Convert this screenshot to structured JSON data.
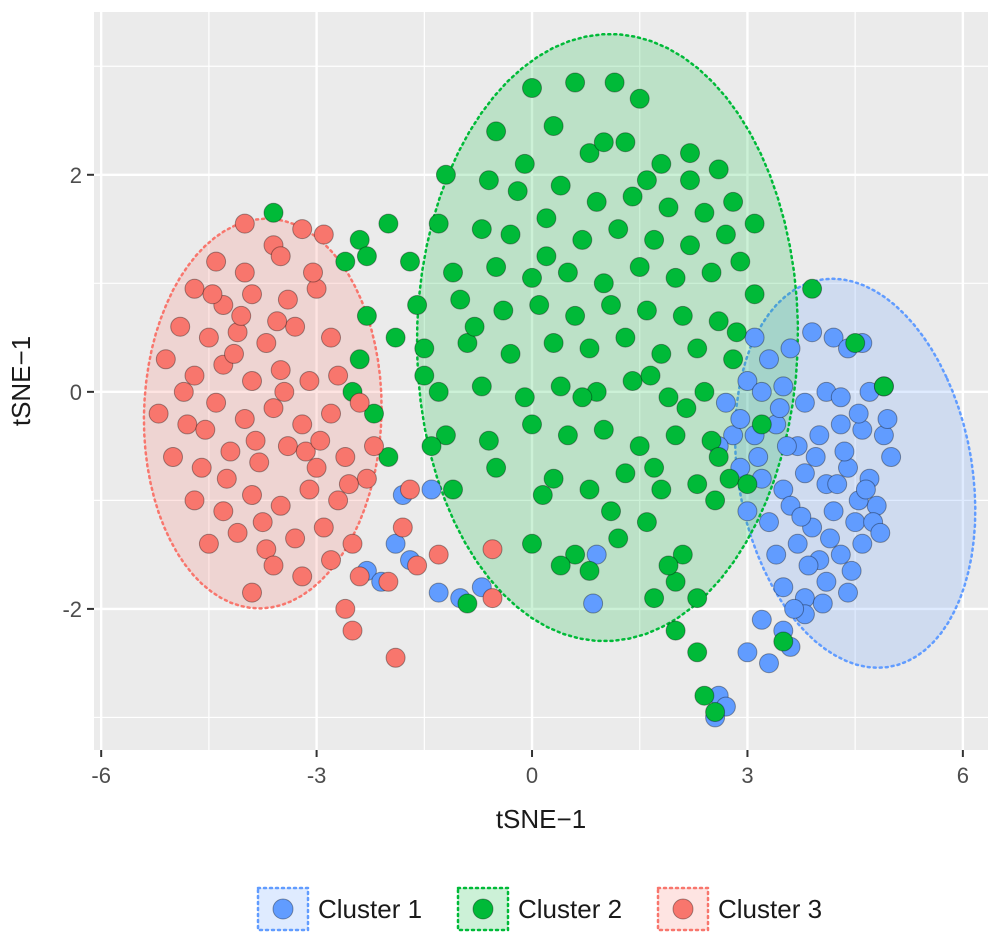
{
  "chart_data": {
    "type": "scatter",
    "title": "",
    "xlabel": "tSNE−1",
    "ylabel": "tSNE−1",
    "xlim": [
      -6.1,
      6.35
    ],
    "ylim": [
      -3.3,
      3.5
    ],
    "x_ticks": [
      -6,
      -3,
      0,
      3,
      6
    ],
    "x_tick_labels": [
      "-6",
      "-3",
      "0",
      "3",
      "6"
    ],
    "y_ticks": [
      -2,
      0,
      2
    ],
    "y_tick_labels": [
      "-2",
      "0",
      "2"
    ],
    "grid": true,
    "panel_background": "#ebebeb",
    "legend_position": "bottom",
    "ellipse_style": "dotted, semi-transparent fill",
    "series": [
      {
        "name": "Cluster 1",
        "color": "#619cff",
        "ellipse": {
          "cx": 4.5,
          "cy": -0.75,
          "rx": 1.55,
          "ry": 1.9,
          "angle": 35
        },
        "points": [
          [
            3.1,
            0.5
          ],
          [
            3.3,
            0.3
          ],
          [
            3.6,
            0.4
          ],
          [
            3.9,
            0.55
          ],
          [
            4.2,
            0.5
          ],
          [
            4.4,
            0.4
          ],
          [
            4.6,
            0.45
          ],
          [
            3.0,
            0.1
          ],
          [
            3.2,
            0.0
          ],
          [
            3.5,
            0.05
          ],
          [
            3.8,
            -0.1
          ],
          [
            4.1,
            0.0
          ],
          [
            4.3,
            -0.05
          ],
          [
            4.7,
            0.0
          ],
          [
            4.9,
            0.05
          ],
          [
            3.1,
            -0.4
          ],
          [
            3.4,
            -0.3
          ],
          [
            3.7,
            -0.5
          ],
          [
            4.0,
            -0.4
          ],
          [
            4.3,
            -0.3
          ],
          [
            4.6,
            -0.35
          ],
          [
            4.9,
            -0.4
          ],
          [
            2.9,
            -0.7
          ],
          [
            3.2,
            -0.8
          ],
          [
            3.5,
            -0.9
          ],
          [
            3.8,
            -0.75
          ],
          [
            4.1,
            -0.85
          ],
          [
            4.4,
            -0.7
          ],
          [
            4.7,
            -0.8
          ],
          [
            5.0,
            -0.6
          ],
          [
            3.0,
            -1.1
          ],
          [
            3.3,
            -1.2
          ],
          [
            3.6,
            -1.05
          ],
          [
            3.9,
            -1.25
          ],
          [
            4.2,
            -1.1
          ],
          [
            4.5,
            -1.2
          ],
          [
            4.8,
            -1.05
          ],
          [
            3.4,
            -1.5
          ],
          [
            3.7,
            -1.4
          ],
          [
            4.0,
            -1.55
          ],
          [
            4.3,
            -1.5
          ],
          [
            4.6,
            -1.4
          ],
          [
            3.5,
            -1.8
          ],
          [
            3.8,
            -1.9
          ],
          [
            4.1,
            -1.75
          ],
          [
            4.4,
            -1.85
          ],
          [
            3.2,
            -2.1
          ],
          [
            3.5,
            -2.2
          ],
          [
            3.8,
            -2.05
          ],
          [
            3.0,
            -2.4
          ],
          [
            3.3,
            -2.5
          ],
          [
            3.6,
            -2.35
          ],
          [
            4.55,
            -1.0
          ],
          [
            4.75,
            -1.2
          ],
          [
            4.35,
            -0.55
          ],
          [
            4.15,
            -1.35
          ],
          [
            3.95,
            -0.6
          ],
          [
            2.8,
            -0.4
          ],
          [
            2.9,
            -0.25
          ],
          [
            2.6,
            -0.5
          ],
          [
            3.15,
            -0.6
          ],
          [
            2.7,
            -0.1
          ],
          [
            3.45,
            -0.15
          ],
          [
            4.85,
            -1.3
          ],
          [
            4.65,
            -0.9
          ],
          [
            4.45,
            -1.65
          ],
          [
            4.25,
            -0.85
          ],
          [
            3.75,
            -1.15
          ],
          [
            3.55,
            -0.5
          ],
          [
            4.05,
            -1.95
          ],
          [
            3.85,
            -1.6
          ],
          [
            3.65,
            -2.0
          ],
          [
            4.55,
            -0.2
          ],
          [
            4.95,
            -0.25
          ],
          [
            2.6,
            -2.8
          ],
          [
            2.7,
            -2.9
          ],
          [
            2.55,
            -3.0
          ],
          [
            -2.3,
            -1.65
          ],
          [
            -1.9,
            -1.4
          ],
          [
            -1.7,
            -1.55
          ],
          [
            -1.3,
            -1.85
          ],
          [
            -1.0,
            -1.9
          ],
          [
            -0.7,
            -1.8
          ],
          [
            -1.8,
            -0.95
          ],
          [
            -1.4,
            -0.9
          ],
          [
            0.9,
            -1.5
          ],
          [
            0.85,
            -1.95
          ],
          [
            -2.1,
            -1.75
          ]
        ]
      },
      {
        "name": "Cluster 2",
        "color": "#00ba38",
        "ellipse": {
          "cx": 1.05,
          "cy": 0.5,
          "rx": 2.65,
          "ry": 2.8,
          "angle": -8
        },
        "points": [
          [
            0.0,
            2.8
          ],
          [
            0.6,
            2.85
          ],
          [
            1.15,
            2.85
          ],
          [
            1.5,
            2.7
          ],
          [
            -0.5,
            2.4
          ],
          [
            0.3,
            2.45
          ],
          [
            0.8,
            2.2
          ],
          [
            1.3,
            2.3
          ],
          [
            1.8,
            2.1
          ],
          [
            2.2,
            1.95
          ],
          [
            2.6,
            2.05
          ],
          [
            -1.2,
            2.0
          ],
          [
            -0.6,
            1.95
          ],
          [
            -0.2,
            1.85
          ],
          [
            0.4,
            1.9
          ],
          [
            0.9,
            1.75
          ],
          [
            1.4,
            1.8
          ],
          [
            1.9,
            1.7
          ],
          [
            2.4,
            1.65
          ],
          [
            2.8,
            1.75
          ],
          [
            -1.3,
            1.55
          ],
          [
            -0.7,
            1.5
          ],
          [
            -0.3,
            1.45
          ],
          [
            0.2,
            1.6
          ],
          [
            0.7,
            1.4
          ],
          [
            1.2,
            1.5
          ],
          [
            1.7,
            1.4
          ],
          [
            2.2,
            1.35
          ],
          [
            2.7,
            1.45
          ],
          [
            3.1,
            1.55
          ],
          [
            -1.7,
            1.2
          ],
          [
            -1.1,
            1.1
          ],
          [
            -0.5,
            1.15
          ],
          [
            0.0,
            1.05
          ],
          [
            0.5,
            1.1
          ],
          [
            1.0,
            1.0
          ],
          [
            1.5,
            1.15
          ],
          [
            2.0,
            1.05
          ],
          [
            2.5,
            1.1
          ],
          [
            2.9,
            1.2
          ],
          [
            -1.6,
            0.8
          ],
          [
            -1.0,
            0.85
          ],
          [
            -0.4,
            0.75
          ],
          [
            0.1,
            0.8
          ],
          [
            0.6,
            0.7
          ],
          [
            1.1,
            0.8
          ],
          [
            1.6,
            0.75
          ],
          [
            2.1,
            0.7
          ],
          [
            2.6,
            0.65
          ],
          [
            3.1,
            0.9
          ],
          [
            -1.5,
            0.4
          ],
          [
            -0.9,
            0.45
          ],
          [
            -0.3,
            0.35
          ],
          [
            0.3,
            0.45
          ],
          [
            0.8,
            0.4
          ],
          [
            1.3,
            0.5
          ],
          [
            1.8,
            0.35
          ],
          [
            2.3,
            0.4
          ],
          [
            2.8,
            0.3
          ],
          [
            -1.3,
            0.0
          ],
          [
            -0.7,
            0.05
          ],
          [
            -0.1,
            -0.05
          ],
          [
            0.4,
            0.05
          ],
          [
            0.9,
            0.0
          ],
          [
            1.4,
            0.1
          ],
          [
            1.9,
            -0.05
          ],
          [
            2.4,
            0.0
          ],
          [
            -1.2,
            -0.4
          ],
          [
            -0.6,
            -0.45
          ],
          [
            0.0,
            -0.3
          ],
          [
            0.5,
            -0.4
          ],
          [
            1.0,
            -0.35
          ],
          [
            1.5,
            -0.5
          ],
          [
            2.0,
            -0.4
          ],
          [
            2.5,
            -0.45
          ],
          [
            -1.1,
            -0.9
          ],
          [
            -0.5,
            -0.7
          ],
          [
            0.3,
            -0.8
          ],
          [
            0.8,
            -0.9
          ],
          [
            1.3,
            -0.75
          ],
          [
            1.8,
            -0.9
          ],
          [
            2.3,
            -0.85
          ],
          [
            0.0,
            -1.4
          ],
          [
            0.6,
            -1.5
          ],
          [
            1.2,
            -1.35
          ],
          [
            1.6,
            -1.2
          ],
          [
            2.1,
            -1.5
          ],
          [
            -2.5,
            0.0
          ],
          [
            -2.2,
            -0.2
          ],
          [
            -2.0,
            -0.6
          ],
          [
            -1.9,
            0.5
          ],
          [
            -2.3,
            0.7
          ],
          [
            -2.6,
            1.2
          ],
          [
            -2.4,
            1.4
          ],
          [
            -2.0,
            1.55
          ],
          [
            -2.3,
            1.25
          ],
          [
            -3.6,
            1.65
          ],
          [
            1.7,
            -1.9
          ],
          [
            2.0,
            -2.2
          ],
          [
            2.3,
            -2.4
          ],
          [
            2.4,
            -2.8
          ],
          [
            2.55,
            -2.95
          ],
          [
            -0.9,
            -1.95
          ],
          [
            0.4,
            -1.6
          ],
          [
            0.8,
            -1.65
          ],
          [
            2.0,
            -1.75
          ],
          [
            2.3,
            -1.9
          ],
          [
            1.9,
            -1.6
          ],
          [
            2.6,
            -0.6
          ],
          [
            2.75,
            -0.8
          ],
          [
            2.55,
            -1.0
          ],
          [
            3.5,
            -2.3
          ],
          [
            4.5,
            0.45
          ],
          [
            4.9,
            0.05
          ],
          [
            3.9,
            0.95
          ],
          [
            2.85,
            0.55
          ],
          [
            3.2,
            -0.3
          ],
          [
            3.0,
            -0.85
          ],
          [
            2.2,
            2.2
          ],
          [
            1.0,
            2.3
          ],
          [
            -0.1,
            2.1
          ],
          [
            1.6,
            1.95
          ],
          [
            0.2,
            1.25
          ],
          [
            -0.8,
            0.6
          ],
          [
            0.7,
            -0.05
          ],
          [
            1.65,
            0.15
          ],
          [
            2.15,
            -0.15
          ],
          [
            -1.4,
            -0.5
          ],
          [
            0.15,
            -0.95
          ],
          [
            1.1,
            -1.1
          ],
          [
            1.7,
            -0.7
          ],
          [
            -1.5,
            0.15
          ],
          [
            -2.4,
            0.3
          ]
        ]
      },
      {
        "name": "Cluster 3",
        "color": "#f8766d",
        "ellipse": {
          "cx": -3.75,
          "cy": -0.2,
          "rx": 1.65,
          "ry": 1.8,
          "angle": -10
        },
        "points": [
          [
            -4.0,
            1.55
          ],
          [
            -3.6,
            1.35
          ],
          [
            -3.2,
            1.5
          ],
          [
            -2.9,
            1.45
          ],
          [
            -4.4,
            1.2
          ],
          [
            -4.0,
            1.1
          ],
          [
            -3.5,
            1.25
          ],
          [
            -4.7,
            0.95
          ],
          [
            -4.3,
            0.8
          ],
          [
            -3.9,
            0.9
          ],
          [
            -3.4,
            0.85
          ],
          [
            -3.0,
            0.95
          ],
          [
            -4.9,
            0.6
          ],
          [
            -4.5,
            0.5
          ],
          [
            -4.1,
            0.55
          ],
          [
            -3.7,
            0.45
          ],
          [
            -3.3,
            0.6
          ],
          [
            -2.8,
            0.5
          ],
          [
            -5.1,
            0.3
          ],
          [
            -4.7,
            0.15
          ],
          [
            -4.3,
            0.25
          ],
          [
            -3.9,
            0.1
          ],
          [
            -3.5,
            0.2
          ],
          [
            -3.1,
            0.1
          ],
          [
            -2.7,
            0.15
          ],
          [
            -5.2,
            -0.2
          ],
          [
            -4.8,
            -0.3
          ],
          [
            -4.4,
            -0.1
          ],
          [
            -4.0,
            -0.25
          ],
          [
            -3.6,
            -0.15
          ],
          [
            -3.2,
            -0.3
          ],
          [
            -2.8,
            -0.2
          ],
          [
            -2.4,
            -0.1
          ],
          [
            -5.0,
            -0.6
          ],
          [
            -4.6,
            -0.7
          ],
          [
            -4.2,
            -0.55
          ],
          [
            -3.8,
            -0.65
          ],
          [
            -3.4,
            -0.5
          ],
          [
            -3.0,
            -0.7
          ],
          [
            -2.6,
            -0.6
          ],
          [
            -2.2,
            -0.5
          ],
          [
            -4.7,
            -1.0
          ],
          [
            -4.3,
            -1.1
          ],
          [
            -3.9,
            -0.95
          ],
          [
            -3.5,
            -1.05
          ],
          [
            -3.1,
            -0.9
          ],
          [
            -2.7,
            -1.0
          ],
          [
            -2.3,
            -0.8
          ],
          [
            -4.5,
            -1.4
          ],
          [
            -4.1,
            -1.3
          ],
          [
            -3.7,
            -1.45
          ],
          [
            -3.3,
            -1.35
          ],
          [
            -2.9,
            -1.25
          ],
          [
            -2.5,
            -1.4
          ],
          [
            -3.6,
            -1.6
          ],
          [
            -3.2,
            -1.7
          ],
          [
            -2.8,
            -1.55
          ],
          [
            -2.4,
            -1.7
          ],
          [
            -3.9,
            -1.85
          ],
          [
            -2.0,
            -1.75
          ],
          [
            -2.6,
            -2.0
          ],
          [
            -2.5,
            -2.2
          ],
          [
            -1.9,
            -2.45
          ],
          [
            -0.55,
            -1.9
          ],
          [
            -0.55,
            -1.45
          ],
          [
            -1.3,
            -1.5
          ],
          [
            -1.6,
            -1.6
          ],
          [
            -1.7,
            -0.9
          ],
          [
            -1.8,
            -1.25
          ],
          [
            -4.15,
            0.35
          ],
          [
            -3.85,
            -0.45
          ],
          [
            -4.55,
            -0.35
          ],
          [
            -3.45,
            0.0
          ],
          [
            -3.15,
            -0.55
          ],
          [
            -4.25,
            -0.8
          ],
          [
            -3.75,
            -1.2
          ],
          [
            -4.05,
            0.7
          ],
          [
            -3.55,
            0.65
          ],
          [
            -2.95,
            -0.45
          ],
          [
            -4.85,
            0.0
          ],
          [
            -4.45,
            0.9
          ],
          [
            -2.55,
            -0.85
          ],
          [
            -3.05,
            1.1
          ]
        ]
      }
    ]
  },
  "legend": {
    "items": [
      {
        "label": "Cluster 1",
        "color": "#619cff"
      },
      {
        "label": "Cluster 2",
        "color": "#00ba38"
      },
      {
        "label": "Cluster 3",
        "color": "#f8766d"
      }
    ]
  }
}
